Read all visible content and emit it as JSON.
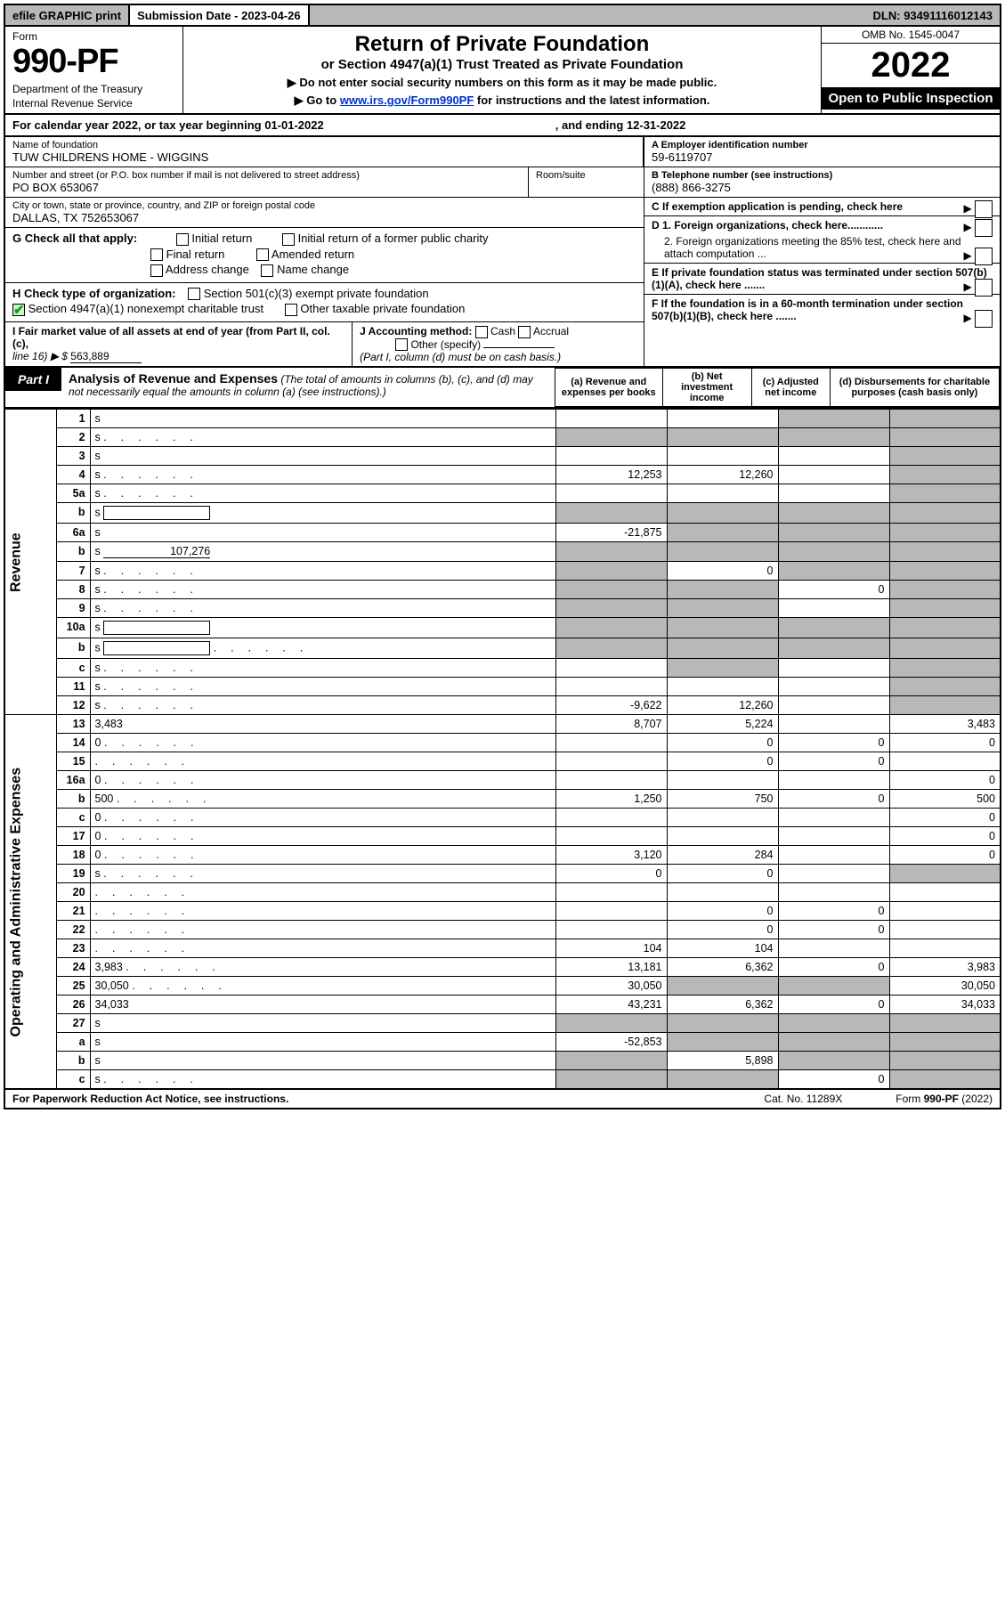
{
  "topbar": {
    "print": "efile GRAPHIC print",
    "subdate_lbl": "Submission Date - 2023-04-26",
    "dln": "DLN: 93491116012143"
  },
  "header": {
    "form_word": "Form",
    "form_num": "990-PF",
    "dept": "Department of the Treasury",
    "irs": "Internal Revenue Service",
    "title": "Return of Private Foundation",
    "subtitle": "or Section 4947(a)(1) Trust Treated as Private Foundation",
    "note1": "▶ Do not enter social security numbers on this form as it may be made public.",
    "note2_pre": "▶ Go to ",
    "note2_link": "www.irs.gov/Form990PF",
    "note2_post": " for instructions and the latest information.",
    "omb": "OMB No. 1545-0047",
    "year": "2022",
    "open": "Open to Public Inspection"
  },
  "cal": {
    "pre": "For calendar year 2022, or tax year beginning 01-01-2022",
    "end": ", and ending 12-31-2022"
  },
  "info": {
    "name_lbl": "Name of foundation",
    "name": "TUW CHILDRENS HOME - WIGGINS",
    "ein_lbl": "A Employer identification number",
    "ein": "59-6119707",
    "addr_lbl": "Number and street (or P.O. box number if mail is not delivered to street address)",
    "addr": "PO BOX 653067",
    "room_lbl": "Room/suite",
    "tel_lbl": "B Telephone number (see instructions)",
    "tel": "(888) 866-3275",
    "city_lbl": "City or town, state or province, country, and ZIP or foreign postal code",
    "city": "DALLAS, TX  752653067",
    "c_lbl": "C If exemption application is pending, check here",
    "g_lbl": "G Check all that apply:",
    "g_opts": [
      "Initial return",
      "Initial return of a former public charity",
      "Final return",
      "Amended return",
      "Address change",
      "Name change"
    ],
    "d1": "D 1. Foreign organizations, check here............",
    "d2": "2. Foreign organizations meeting the 85% test, check here and attach computation ...",
    "h_lbl": "H Check type of organization:",
    "h_501": "Section 501(c)(3) exempt private foundation",
    "h_4947": "Section 4947(a)(1) nonexempt charitable trust",
    "h_other": "Other taxable private foundation",
    "e_lbl": "E If private foundation status was terminated under section 507(b)(1)(A), check here .......",
    "i_lbl": "I Fair market value of all assets at end of year (from Part II, col. (c),",
    "i_line": "line 16) ▶ $",
    "i_val": "563,889",
    "j_lbl": "J Accounting method:",
    "j_cash": "Cash",
    "j_accrual": "Accrual",
    "j_other": "Other (specify)",
    "j_note": "(Part I, column (d) must be on cash basis.)",
    "f_lbl": "F If the foundation is in a 60-month termination under section 507(b)(1)(B), check here ......."
  },
  "part1": {
    "lbl": "Part I",
    "title": "Analysis of Revenue and Expenses",
    "note": " (The total of amounts in columns (b), (c), and (d) may not necessarily equal the amounts in column (a) (see instructions).)",
    "cols": {
      "a": "(a) Revenue and expenses per books",
      "b": "(b) Net investment income",
      "c": "(c) Adjusted net income",
      "d": "(d) Disbursements for charitable purposes (cash basis only)"
    }
  },
  "sections": {
    "revenue": "Revenue",
    "expenses": "Operating and Administrative Expenses"
  },
  "rows": [
    {
      "n": "1",
      "d": "s",
      "a": "",
      "b": "",
      "c": "s"
    },
    {
      "n": "2",
      "d": "s",
      "dots": 1,
      "a": "s",
      "b": "s",
      "c": "s"
    },
    {
      "n": "3",
      "d": "s",
      "a": "",
      "b": "",
      "c": ""
    },
    {
      "n": "4",
      "d": "s",
      "dots": 1,
      "a": "12,253",
      "b": "12,260",
      "c": ""
    },
    {
      "n": "5a",
      "d": "s",
      "dots": 1,
      "a": "",
      "b": "",
      "c": ""
    },
    {
      "n": "b",
      "d": "s",
      "box": 1,
      "a": "s",
      "b": "s",
      "c": "s"
    },
    {
      "n": "6a",
      "d": "s",
      "a": "-21,875",
      "b": "s",
      "c": "s"
    },
    {
      "n": "b",
      "d": "s",
      "uline": "107,276",
      "a": "s",
      "b": "s",
      "c": "s"
    },
    {
      "n": "7",
      "d": "s",
      "dots": 1,
      "a": "s",
      "b": "0",
      "c": "s"
    },
    {
      "n": "8",
      "d": "s",
      "dots": 1,
      "a": "s",
      "b": "s",
      "c": "0"
    },
    {
      "n": "9",
      "d": "s",
      "dots": 1,
      "a": "s",
      "b": "s",
      "c": ""
    },
    {
      "n": "10a",
      "d": "s",
      "box": 1,
      "a": "s",
      "b": "s",
      "c": "s"
    },
    {
      "n": "b",
      "d": "s",
      "dots": 1,
      "box": 1,
      "a": "s",
      "b": "s",
      "c": "s"
    },
    {
      "n": "c",
      "d": "s",
      "dots": 1,
      "a": "",
      "b": "s",
      "c": ""
    },
    {
      "n": "11",
      "d": "s",
      "dots": 1,
      "a": "",
      "b": "",
      "c": ""
    },
    {
      "n": "12",
      "d": "s",
      "dots": 1,
      "a": "-9,622",
      "b": "12,260",
      "c": ""
    }
  ],
  "exp_rows": [
    {
      "n": "13",
      "d": "3,483",
      "a": "8,707",
      "b": "5,224",
      "c": ""
    },
    {
      "n": "14",
      "d": "0",
      "dots": 1,
      "a": "",
      "b": "0",
      "c": "0"
    },
    {
      "n": "15",
      "d": "",
      "dots": 1,
      "a": "",
      "b": "0",
      "c": "0"
    },
    {
      "n": "16a",
      "d": "0",
      "dots": 1,
      "a": "",
      "b": "",
      "c": ""
    },
    {
      "n": "b",
      "d": "500",
      "dots": 1,
      "a": "1,250",
      "b": "750",
      "c": "0"
    },
    {
      "n": "c",
      "d": "0",
      "dots": 1,
      "a": "",
      "b": "",
      "c": ""
    },
    {
      "n": "17",
      "d": "0",
      "dots": 1,
      "a": "",
      "b": "",
      "c": ""
    },
    {
      "n": "18",
      "d": "0",
      "dots": 1,
      "a": "3,120",
      "b": "284",
      "c": ""
    },
    {
      "n": "19",
      "d": "s",
      "dots": 1,
      "a": "0",
      "b": "0",
      "c": ""
    },
    {
      "n": "20",
      "d": "",
      "dots": 1,
      "a": "",
      "b": "",
      "c": ""
    },
    {
      "n": "21",
      "d": "",
      "dots": 1,
      "a": "",
      "b": "0",
      "c": "0"
    },
    {
      "n": "22",
      "d": "",
      "dots": 1,
      "a": "",
      "b": "0",
      "c": "0"
    },
    {
      "n": "23",
      "d": "",
      "dots": 1,
      "a": "104",
      "b": "104",
      "c": ""
    },
    {
      "n": "24",
      "d": "3,983",
      "dots": 1,
      "a": "13,181",
      "b": "6,362",
      "c": "0"
    },
    {
      "n": "25",
      "d": "30,050",
      "dots": 1,
      "a": "30,050",
      "b": "s",
      "c": "s"
    },
    {
      "n": "26",
      "d": "34,033",
      "a": "43,231",
      "b": "6,362",
      "c": "0"
    },
    {
      "n": "27",
      "d": "s",
      "a": "s",
      "b": "s",
      "c": "s"
    },
    {
      "n": "a",
      "d": "s",
      "a": "-52,853",
      "b": "s",
      "c": "s"
    },
    {
      "n": "b",
      "d": "s",
      "a": "s",
      "b": "5,898",
      "c": "s"
    },
    {
      "n": "c",
      "d": "s",
      "dots": 1,
      "a": "s",
      "b": "s",
      "c": "0"
    }
  ],
  "footer": {
    "left": "For Paperwork Reduction Act Notice, see instructions.",
    "mid": "Cat. No. 11289X",
    "right": "Form 990-PF (2022)"
  },
  "colors": {
    "shade": "#b8b8b8",
    "link": "#0033cc",
    "green": "#0a0"
  }
}
